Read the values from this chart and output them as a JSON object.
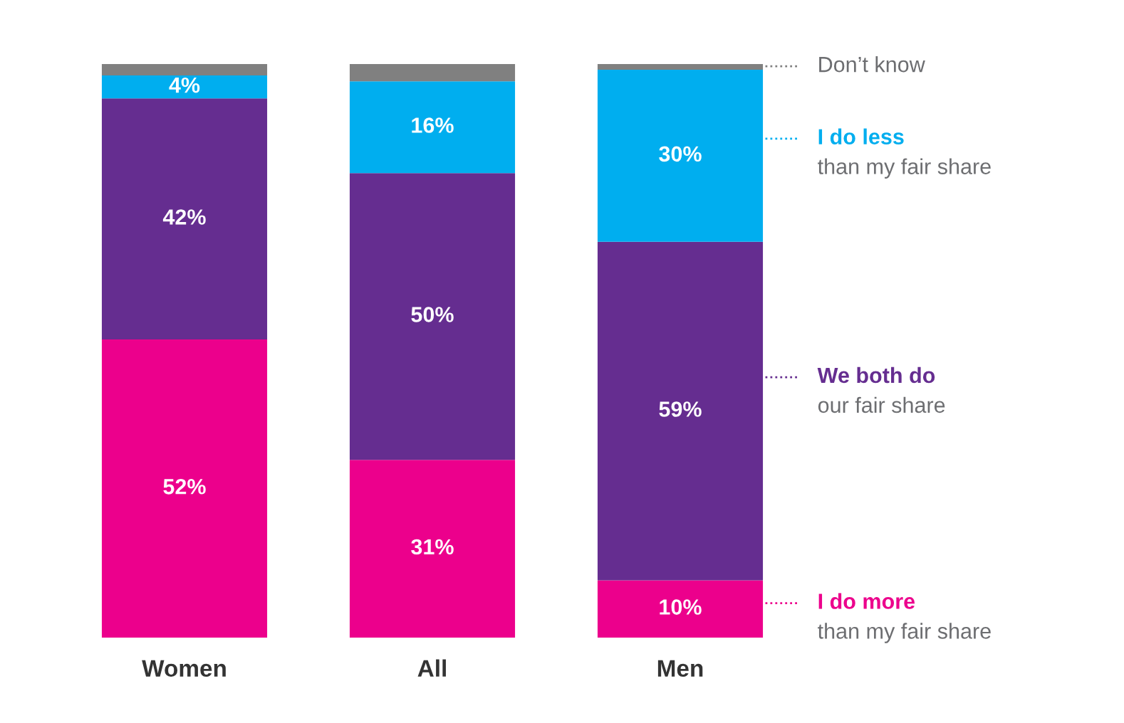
{
  "chart_data": {
    "type": "bar",
    "stacked": true,
    "categories": [
      "Women",
      "All",
      "Men"
    ],
    "ylim": [
      0,
      100
    ],
    "tick_labels": "x",
    "grid": false,
    "legend": "right",
    "series": [
      {
        "name": "I do more\nthan my fair share",
        "color": "#ec008c",
        "values": [
          52,
          31,
          10
        ],
        "value_labels": [
          "52%",
          "31%",
          "10%"
        ]
      },
      {
        "name": "We both do\nour fair share",
        "color": "#652d90",
        "values": [
          42,
          50,
          59
        ],
        "value_labels": [
          "42%",
          "50%",
          "59%"
        ]
      },
      {
        "name": "I do less\nthan my fair share",
        "color": "#00aeef",
        "values": [
          4,
          16,
          30
        ],
        "value_labels": [
          "4%",
          "16%",
          "30%"
        ]
      },
      {
        "name": "Don’t know",
        "color": "#808080",
        "values": [
          2,
          3,
          1
        ],
        "value_labels": [
          null,
          null,
          null
        ]
      }
    ]
  }
}
